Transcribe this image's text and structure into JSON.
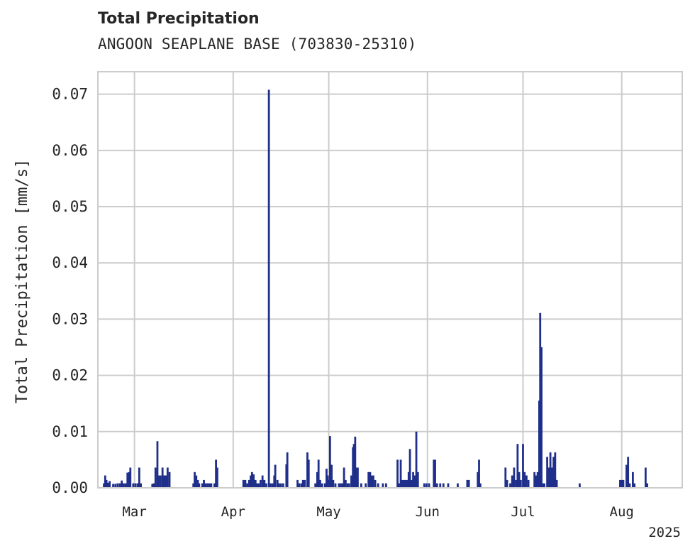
{
  "chart_data": {
    "type": "bar",
    "title": "Total Precipitation",
    "subtitle": "ANGOON SEAPLANE BASE (703830-25310)",
    "ylabel": "Total Precipitation [mm/s]",
    "xlabel": "",
    "year_label": "2025",
    "ylim": [
      0,
      0.074
    ],
    "xlim_day": [
      -11.5,
      172
    ],
    "y_ticks": [
      {
        "value": 0.0,
        "label": "0.00"
      },
      {
        "value": 0.01,
        "label": "0.01"
      },
      {
        "value": 0.02,
        "label": "0.02"
      },
      {
        "value": 0.03,
        "label": "0.03"
      },
      {
        "value": 0.04,
        "label": "0.04"
      },
      {
        "value": 0.05,
        "label": "0.05"
      },
      {
        "value": 0.06,
        "label": "0.06"
      },
      {
        "value": 0.07,
        "label": "0.07"
      }
    ],
    "x_ticks": [
      {
        "day": 0,
        "label": "Mar"
      },
      {
        "day": 31,
        "label": "Apr"
      },
      {
        "day": 61,
        "label": "May"
      },
      {
        "day": 92,
        "label": "Jun"
      },
      {
        "day": 122,
        "label": "Jul"
      },
      {
        "day": 153,
        "label": "Aug"
      }
    ],
    "grid": true,
    "series_color": "#1f2f8a",
    "series": [
      {
        "name": "Total Precipitation",
        "points": [
          [
            -9.6,
            0.0008
          ],
          [
            -9.2,
            0.0022
          ],
          [
            -8.8,
            0.0014
          ],
          [
            -8.3,
            0.0009
          ],
          [
            -7.8,
            0.0012
          ],
          [
            -6.7,
            0.0007
          ],
          [
            -6.0,
            0.0007
          ],
          [
            -5.3,
            0.0008
          ],
          [
            -4.6,
            0.0008
          ],
          [
            -4.0,
            0.0013
          ],
          [
            -3.4,
            0.0008
          ],
          [
            -2.8,
            0.0008
          ],
          [
            -2.2,
            0.0027
          ],
          [
            -1.7,
            0.0028
          ],
          [
            -1.3,
            0.0036
          ],
          [
            -0.4,
            0.0008
          ],
          [
            0.3,
            0.0008
          ],
          [
            1.0,
            0.0008
          ],
          [
            1.5,
            0.0036
          ],
          [
            2.0,
            0.0008
          ],
          [
            5.6,
            0.0007
          ],
          [
            6.1,
            0.0008
          ],
          [
            6.6,
            0.0036
          ],
          [
            7.2,
            0.0083
          ],
          [
            7.6,
            0.0022
          ],
          [
            8.2,
            0.0022
          ],
          [
            8.8,
            0.0036
          ],
          [
            9.4,
            0.0022
          ],
          [
            9.9,
            0.0022
          ],
          [
            10.4,
            0.0036
          ],
          [
            11.0,
            0.0028
          ],
          [
            18.5,
            0.0008
          ],
          [
            18.9,
            0.0028
          ],
          [
            19.4,
            0.0022
          ],
          [
            19.9,
            0.0014
          ],
          [
            20.3,
            0.0008
          ],
          [
            21.3,
            0.0008
          ],
          [
            21.8,
            0.0014
          ],
          [
            22.3,
            0.0008
          ],
          [
            22.9,
            0.0008
          ],
          [
            23.5,
            0.0008
          ],
          [
            24.1,
            0.0008
          ],
          [
            25.1,
            0.0008
          ],
          [
            25.6,
            0.005
          ],
          [
            26.0,
            0.0036
          ],
          [
            34.2,
            0.0014
          ],
          [
            34.8,
            0.0014
          ],
          [
            35.4,
            0.0008
          ],
          [
            36.0,
            0.0014
          ],
          [
            36.5,
            0.0022
          ],
          [
            36.9,
            0.0028
          ],
          [
            37.4,
            0.0024
          ],
          [
            38.0,
            0.0014
          ],
          [
            38.5,
            0.0008
          ],
          [
            39.0,
            0.0008
          ],
          [
            39.6,
            0.0014
          ],
          [
            40.2,
            0.0022
          ],
          [
            40.8,
            0.0014
          ],
          [
            41.4,
            0.0008
          ],
          [
            42.2,
            0.0708
          ],
          [
            42.7,
            0.0008
          ],
          [
            43.3,
            0.0008
          ],
          [
            43.9,
            0.0022
          ],
          [
            44.2,
            0.0041
          ],
          [
            44.9,
            0.0014
          ],
          [
            45.4,
            0.0008
          ],
          [
            46.0,
            0.0008
          ],
          [
            46.7,
            0.0008
          ],
          [
            47.7,
            0.0042
          ],
          [
            48.0,
            0.0063
          ],
          [
            51.2,
            0.0014
          ],
          [
            51.7,
            0.0008
          ],
          [
            52.4,
            0.0008
          ],
          [
            52.9,
            0.0014
          ],
          [
            53.5,
            0.0014
          ],
          [
            54.3,
            0.0063
          ],
          [
            54.7,
            0.005
          ],
          [
            56.8,
            0.0008
          ],
          [
            57.4,
            0.0028
          ],
          [
            57.8,
            0.005
          ],
          [
            58.3,
            0.0014
          ],
          [
            58.9,
            0.0008
          ],
          [
            59.8,
            0.0008
          ],
          [
            60.3,
            0.0034
          ],
          [
            60.7,
            0.0022
          ],
          [
            61.1,
            0.0014
          ],
          [
            61.4,
            0.0092
          ],
          [
            61.9,
            0.0041
          ],
          [
            62.4,
            0.0014
          ],
          [
            63.1,
            0.0008
          ],
          [
            64.2,
            0.0008
          ],
          [
            64.8,
            0.0008
          ],
          [
            65.3,
            0.0008
          ],
          [
            65.8,
            0.0036
          ],
          [
            66.3,
            0.0014
          ],
          [
            66.9,
            0.0008
          ],
          [
            67.4,
            0.0008
          ],
          [
            68.1,
            0.0022
          ],
          [
            68.6,
            0.0072
          ],
          [
            68.9,
            0.0078
          ],
          [
            69.3,
            0.0091
          ],
          [
            69.7,
            0.0036
          ],
          [
            70.1,
            0.0036
          ],
          [
            71.2,
            0.0008
          ],
          [
            72.6,
            0.0008
          ],
          [
            73.5,
            0.0028
          ],
          [
            74.0,
            0.0028
          ],
          [
            74.5,
            0.0022
          ],
          [
            75.0,
            0.0022
          ],
          [
            75.6,
            0.0014
          ],
          [
            76.5,
            0.0008
          ],
          [
            78.0,
            0.0008
          ],
          [
            79.0,
            0.0008
          ],
          [
            82.6,
            0.005
          ],
          [
            83.1,
            0.0008
          ],
          [
            83.6,
            0.005
          ],
          [
            84.1,
            0.0014
          ],
          [
            84.6,
            0.0014
          ],
          [
            85.1,
            0.0014
          ],
          [
            85.6,
            0.0014
          ],
          [
            86.1,
            0.0028
          ],
          [
            86.5,
            0.0069
          ],
          [
            87.0,
            0.0014
          ],
          [
            87.5,
            0.0028
          ],
          [
            88.0,
            0.0022
          ],
          [
            88.5,
            0.01
          ],
          [
            89.0,
            0.0028
          ],
          [
            91.0,
            0.0008
          ],
          [
            91.7,
            0.0008
          ],
          [
            92.5,
            0.0008
          ],
          [
            94.0,
            0.005
          ],
          [
            94.4,
            0.005
          ],
          [
            95.0,
            0.0008
          ],
          [
            96.0,
            0.0008
          ],
          [
            97.0,
            0.0008
          ],
          [
            98.5,
            0.0008
          ],
          [
            101.5,
            0.0008
          ],
          [
            104.5,
            0.0014
          ],
          [
            105.0,
            0.0014
          ],
          [
            107.8,
            0.0028
          ],
          [
            108.2,
            0.005
          ],
          [
            108.6,
            0.0008
          ],
          [
            116.5,
            0.0036
          ],
          [
            117.0,
            0.0014
          ],
          [
            118.0,
            0.0008
          ],
          [
            118.6,
            0.0022
          ],
          [
            119.2,
            0.0036
          ],
          [
            119.8,
            0.0014
          ],
          [
            120.3,
            0.0078
          ],
          [
            120.8,
            0.0028
          ],
          [
            121.3,
            0.0014
          ],
          [
            122.0,
            0.0078
          ],
          [
            122.5,
            0.0028
          ],
          [
            123.1,
            0.0022
          ],
          [
            123.7,
            0.0014
          ],
          [
            125.6,
            0.0028
          ],
          [
            126.1,
            0.0022
          ],
          [
            126.6,
            0.0028
          ],
          [
            127.1,
            0.0155
          ],
          [
            127.4,
            0.0311
          ],
          [
            127.8,
            0.025
          ],
          [
            128.2,
            0.0008
          ],
          [
            128.7,
            0.0008
          ],
          [
            129.6,
            0.0055
          ],
          [
            130.1,
            0.0036
          ],
          [
            130.6,
            0.0063
          ],
          [
            131.1,
            0.0036
          ],
          [
            131.6,
            0.0055
          ],
          [
            132.1,
            0.0063
          ],
          [
            132.6,
            0.0014
          ],
          [
            139.8,
            0.0008
          ],
          [
            152.5,
            0.0014
          ],
          [
            153.0,
            0.0014
          ],
          [
            153.5,
            0.0014
          ],
          [
            154.5,
            0.0041
          ],
          [
            155.0,
            0.0055
          ],
          [
            155.5,
            0.0008
          ],
          [
            156.5,
            0.0028
          ],
          [
            157.0,
            0.0008
          ],
          [
            160.5,
            0.0036
          ],
          [
            161.0,
            0.0008
          ]
        ]
      }
    ]
  }
}
